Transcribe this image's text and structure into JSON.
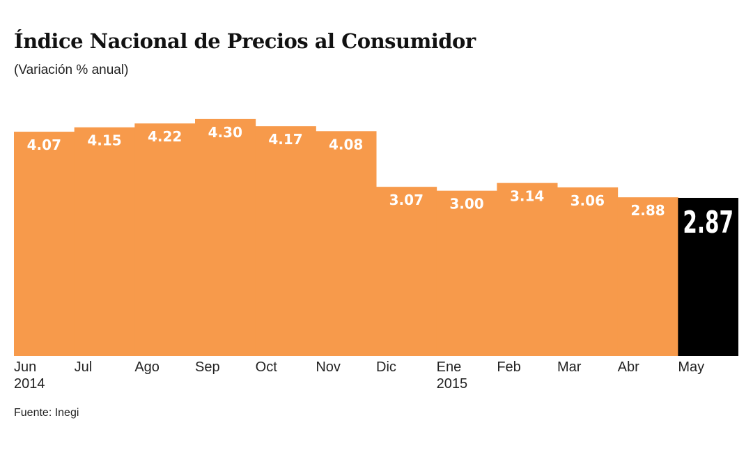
{
  "chart_data": {
    "type": "bar",
    "title": "Índice Nacional de Precios al Consumidor",
    "subtitle": "(Variación % anual)",
    "source": "Fuente: Inegi",
    "categories": [
      "Jun",
      "Jul",
      "Ago",
      "Sep",
      "Oct",
      "Nov",
      "Dic",
      "Ene",
      "Feb",
      "Mar",
      "Abr",
      "May"
    ],
    "category_sublabels": [
      "2014",
      "",
      "",
      "",
      "",
      "",
      "",
      "2015",
      "",
      "",
      "",
      ""
    ],
    "values": [
      4.07,
      4.15,
      4.22,
      4.3,
      4.17,
      4.08,
      3.07,
      3.0,
      3.14,
      3.06,
      2.88,
      2.87
    ],
    "value_labels": [
      "4.07",
      "4.15",
      "4.22",
      "4.30",
      "4.17",
      "4.08",
      "3.07",
      "3.00",
      "3.14",
      "3.06",
      "2.88",
      "2.87"
    ],
    "highlight_index": 11,
    "ylim": [
      0,
      4.3
    ],
    "grid": false,
    "colors": {
      "bar": "#F79A4B",
      "highlight": "#000000",
      "label": "#FFFFFF"
    }
  }
}
